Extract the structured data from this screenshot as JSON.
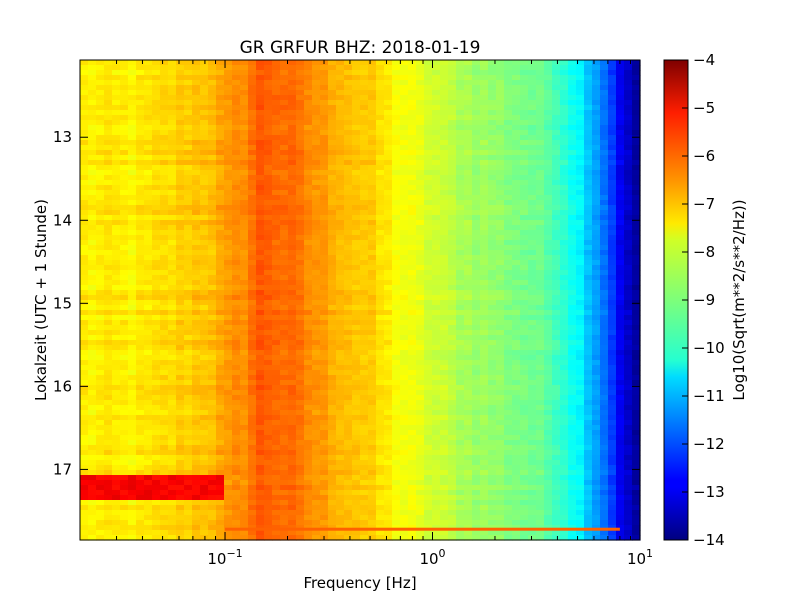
{
  "chart_data": {
    "type": "heatmap",
    "title": "GR GRFUR BHZ: 2018-01-19",
    "xlabel": "Frequency [Hz]",
    "ylabel": "Lokalzeit (UTC + 1 Stunde)",
    "x_scale": "log",
    "xlim": [
      0.02,
      10
    ],
    "ylim": [
      17.85,
      12.07
    ],
    "y_inverted": true,
    "x_ticks": [
      {
        "value": 0.1,
        "base": "10",
        "exp": "−1"
      },
      {
        "value": 1,
        "base": "10",
        "exp": "0"
      },
      {
        "value": 10,
        "base": "10",
        "exp": "1"
      }
    ],
    "y_ticks": [
      {
        "value": 13,
        "label": "13"
      },
      {
        "value": 14,
        "label": "14"
      },
      {
        "value": 15,
        "label": "15"
      },
      {
        "value": 16,
        "label": "16"
      },
      {
        "value": 17,
        "label": "17"
      }
    ],
    "colorbar": {
      "label": "Log10(Sqrt(m**2/s**2/Hz))",
      "colormap": "jet",
      "range": [
        -14,
        -4
      ],
      "ticks": [
        "−4",
        "−5",
        "−6",
        "−7",
        "−8",
        "−9",
        "−10",
        "−11",
        "−12",
        "−13",
        "−14"
      ]
    },
    "spectrum_profile": {
      "frequency_hz": [
        0.02,
        0.04,
        0.06,
        0.08,
        0.1,
        0.12,
        0.15,
        0.2,
        0.3,
        0.5,
        0.7,
        1.0,
        1.5,
        2.0,
        3.0,
        4.0,
        5.0,
        6.0,
        7.0,
        8.0,
        9.0,
        10.0
      ],
      "value_log10": [
        -7.6,
        -7.6,
        -7.3,
        -7.1,
        -6.9,
        -6.6,
        -6.1,
        -6.3,
        -6.8,
        -7.3,
        -7.8,
        -8.2,
        -8.6,
        -8.8,
        -9.1,
        -9.5,
        -10.2,
        -11.0,
        -11.8,
        -12.8,
        -13.5,
        -13.8
      ]
    },
    "events": [
      {
        "description": "strong low-frequency band",
        "time_range": [
          17.05,
          17.35
        ],
        "frequency_range": [
          0.02,
          0.1
        ],
        "value_log10": -5.2
      },
      {
        "description": "narrow horizontal line",
        "time": 17.72,
        "frequency_range": [
          0.1,
          8.0
        ],
        "value_log10": -6.2
      }
    ]
  }
}
